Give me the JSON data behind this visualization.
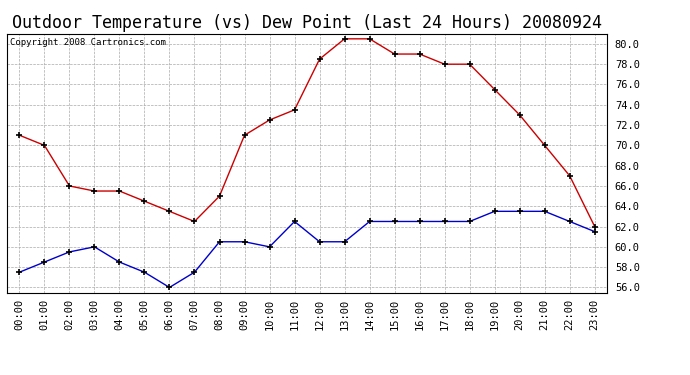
{
  "title": "Outdoor Temperature (vs) Dew Point (Last 24 Hours) 20080924",
  "copyright_text": "Copyright 2008 Cartronics.com",
  "x_labels": [
    "00:00",
    "01:00",
    "02:00",
    "03:00",
    "04:00",
    "05:00",
    "06:00",
    "07:00",
    "08:00",
    "09:00",
    "10:00",
    "11:00",
    "12:00",
    "13:00",
    "14:00",
    "15:00",
    "16:00",
    "17:00",
    "18:00",
    "19:00",
    "20:00",
    "21:00",
    "22:00",
    "23:00"
  ],
  "temp_values": [
    71.0,
    70.0,
    66.0,
    65.5,
    65.5,
    64.5,
    63.5,
    62.5,
    65.0,
    71.0,
    72.5,
    73.5,
    78.5,
    80.5,
    80.5,
    79.0,
    79.0,
    78.0,
    78.0,
    75.5,
    73.0,
    70.0,
    67.0,
    62.0
  ],
  "dew_values": [
    57.5,
    58.5,
    59.5,
    60.0,
    58.5,
    57.5,
    56.0,
    57.5,
    60.5,
    60.5,
    60.0,
    62.5,
    60.5,
    60.5,
    62.5,
    62.5,
    62.5,
    62.5,
    62.5,
    63.5,
    63.5,
    63.5,
    62.5,
    61.5
  ],
  "temp_color": "#cc0000",
  "dew_color": "#0000cc",
  "ylim": [
    55.5,
    81.0
  ],
  "yticks": [
    56.0,
    58.0,
    60.0,
    62.0,
    64.0,
    66.0,
    68.0,
    70.0,
    72.0,
    74.0,
    76.0,
    78.0,
    80.0
  ],
  "bg_color": "#ffffff",
  "grid_color": "#aaaaaa",
  "title_fontsize": 12,
  "tick_fontsize": 7.5,
  "copyright_fontsize": 6.5
}
